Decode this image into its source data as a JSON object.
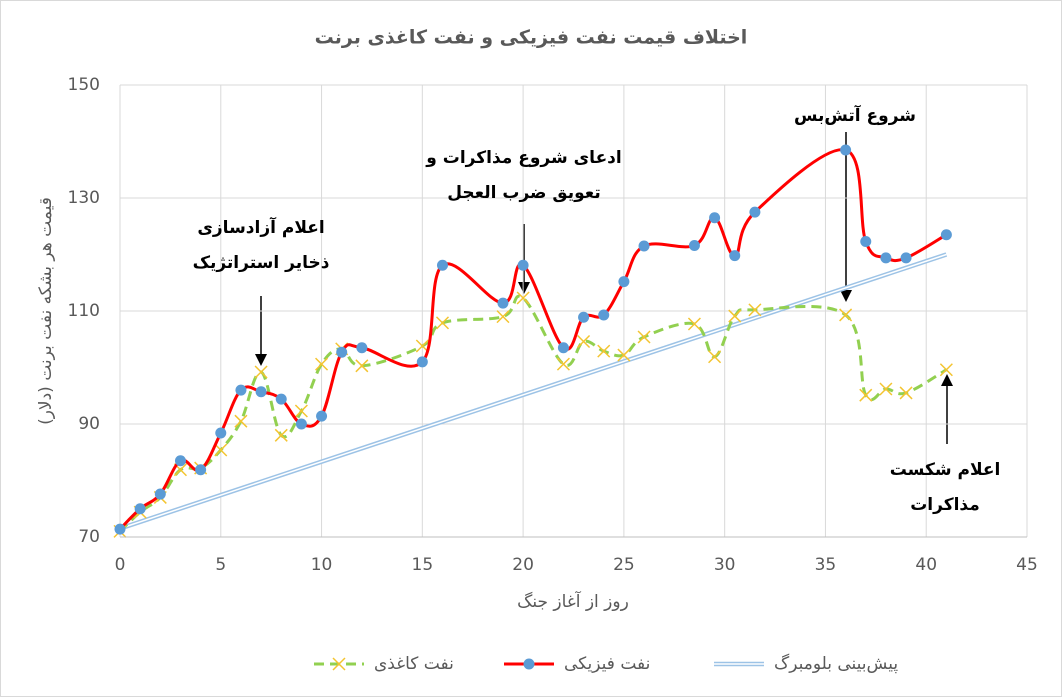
{
  "chart_data": {
    "type": "line",
    "title": "اختلاف قیمت نفت فیزیکی و نفت کاغذی برنت",
    "x_label": "روز از آغاز جنگ",
    "y_label": "قیمت هر بشکه نفت برنت (دلار)",
    "xlim": [
      0,
      45
    ],
    "xticks": [
      0,
      5,
      10,
      15,
      20,
      25,
      30,
      35,
      40,
      45
    ],
    "ylim": [
      70,
      150
    ],
    "yticks": [
      70,
      90,
      110,
      130,
      150
    ],
    "grid": true,
    "series": [
      {
        "name": "نفت کاغذی",
        "color": "#92d050",
        "style": "dashed",
        "marker": "x",
        "x": [
          0,
          1,
          2,
          3,
          4,
          5,
          6,
          7,
          8,
          9,
          10,
          11,
          12,
          15,
          16,
          19,
          20,
          22,
          23,
          24,
          25,
          26,
          28.5,
          29.5,
          30.5,
          31.5,
          36,
          37,
          38,
          39,
          41
        ],
        "values": [
          71,
          74.4,
          77,
          81.9,
          82.2,
          85.4,
          90.5,
          99.2,
          88,
          92.3,
          100.6,
          103.3,
          100.3,
          103.8,
          107.9,
          109,
          112.3,
          100.6,
          104.6,
          102.9,
          102.2,
          105.4,
          107.7,
          101.9,
          109.1,
          110.2,
          109.3,
          95.1,
          96.2,
          95.5,
          99.6
        ]
      },
      {
        "name": "نفت فیزیکی",
        "color": "#ff0000",
        "marker_color": "#5b9bd5",
        "style": "solid",
        "marker": "circle",
        "x": [
          0,
          1,
          2,
          3,
          4,
          5,
          6,
          7,
          8,
          9,
          10,
          11,
          12,
          15,
          16,
          19,
          20,
          22,
          23,
          24,
          25,
          26,
          28.5,
          29.5,
          30.5,
          31.5,
          36,
          37,
          38,
          39,
          41
        ],
        "values": [
          71.4,
          75,
          77.6,
          83.5,
          81.9,
          88.4,
          96,
          95.7,
          94.4,
          90,
          91.4,
          102.7,
          103.5,
          101,
          118.1,
          111.4,
          118.1,
          103.5,
          108.9,
          109.3,
          115.2,
          121.5,
          121.6,
          126.5,
          119.8,
          127.5,
          138.5,
          122.3,
          119.4,
          119.4,
          123.5
        ]
      },
      {
        "name": "پیش‌بینی بلومبرگ",
        "color": "#9dc3e6",
        "style": "double",
        "marker": "none",
        "x": [
          0,
          41
        ],
        "values": [
          71.5,
          120
        ]
      }
    ],
    "annotations": [
      {
        "lines": [
          "اعلام آزادسازی",
          "ذخایر استراتژیک"
        ]
      },
      {
        "lines": [
          "ادعای شروع مذاکرات و",
          "تعویق ضرب العجل"
        ]
      },
      {
        "lines": [
          "شروع آتش‌بس"
        ]
      },
      {
        "lines": [
          "اعلام شکست",
          "مذاکرات"
        ]
      }
    ]
  }
}
